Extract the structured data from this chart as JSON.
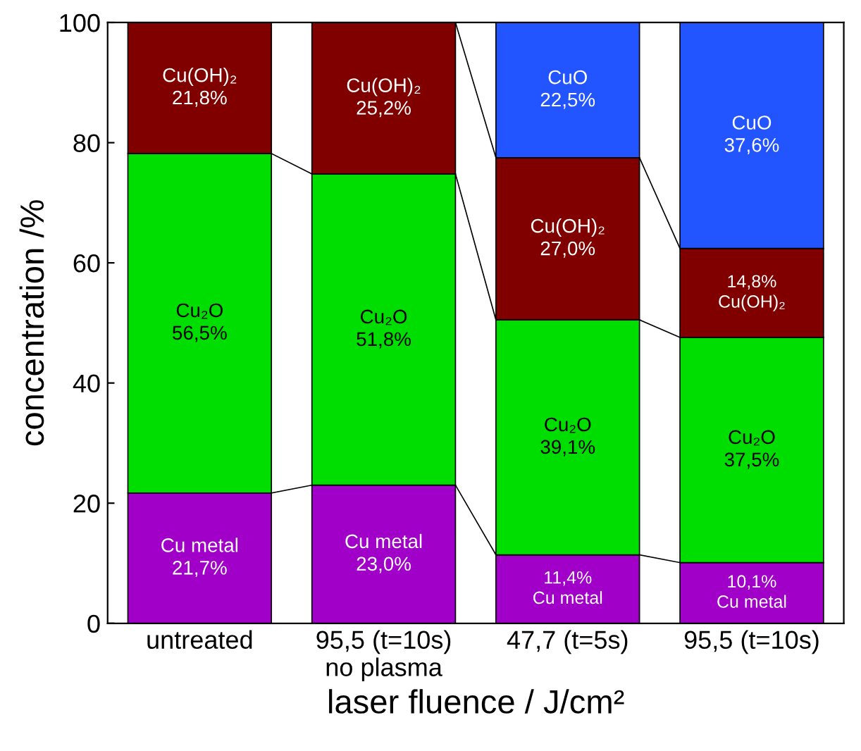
{
  "chart_data": {
    "type": "bar",
    "stacked": true,
    "xlabel": "laser fluence / J/cm²",
    "ylabel": "concentration /%",
    "categories": [
      "untreated",
      "95,5 (t=10s)\nno plasma",
      "47,7 (t=5s)",
      "95,5 (t=10s)"
    ],
    "ylim": [
      0,
      100
    ],
    "yticks": [
      0,
      20,
      40,
      60,
      80,
      100
    ],
    "grid": false,
    "legend": false,
    "series": [
      {
        "name": "Cu metal",
        "color": "#a000c8",
        "values": [
          21.7,
          23.0,
          11.4,
          10.1
        ],
        "value_labels": [
          "21,7%",
          "23,0%",
          "11,4%",
          "10,1%"
        ]
      },
      {
        "name": "Cu₂O",
        "color": "#00dd00",
        "values": [
          56.5,
          51.8,
          39.1,
          37.5
        ],
        "value_labels": [
          "56,5%",
          "51,8%",
          "39,1%",
          "37,5%"
        ]
      },
      {
        "name": "Cu(OH)₂",
        "color": "#800000",
        "values": [
          21.8,
          25.2,
          27.0,
          14.8
        ],
        "value_labels": [
          "21,8%",
          "25,2%",
          "27,0%",
          "14,8%"
        ]
      },
      {
        "name": "CuO",
        "color": "#2255ff",
        "values": [
          null,
          null,
          22.5,
          37.6
        ],
        "value_labels": [
          null,
          null,
          "22,5%",
          "37,6%"
        ]
      }
    ]
  }
}
